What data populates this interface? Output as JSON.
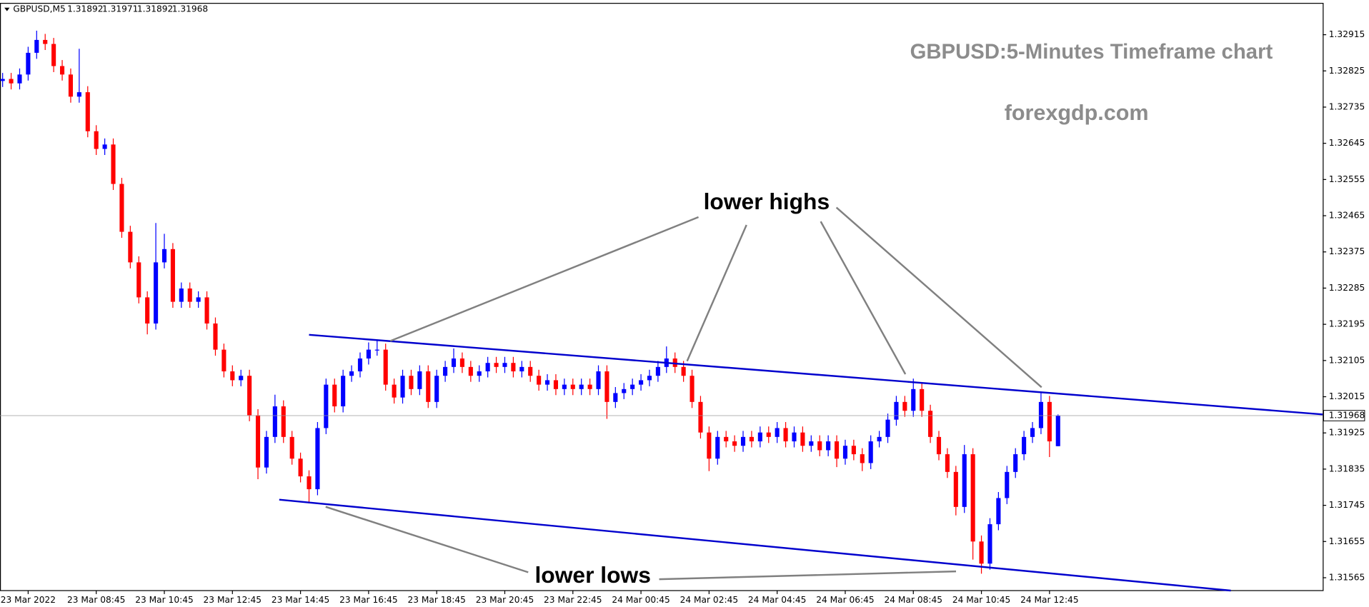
{
  "chart_data": {
    "type": "candlestick",
    "symbol": "GBPUSD,M5",
    "title": "GBPUSD:5-Minutes Timeframe chart",
    "watermark": "forexgdp.com",
    "annotations": [
      "lower highs",
      "lower lows"
    ],
    "up_color": "#0000ff",
    "down_color": "#ff0000",
    "trendline_color": "#0000cd",
    "xlim": [
      0,
      155.1
    ],
    "ylim": [
      1.31533,
      1.32993
    ],
    "yticks": [
      1.32915,
      1.32825,
      1.32735,
      1.32645,
      1.32555,
      1.32465,
      1.32375,
      1.32285,
      1.32195,
      1.32105,
      1.32015,
      1.31925,
      1.31835,
      1.31745,
      1.31655,
      1.31565
    ],
    "xticks": [
      {
        "value": 3,
        "label": "23 Mar 2022"
      },
      {
        "value": 11,
        "label": "23 Mar 08:45"
      },
      {
        "value": 19,
        "label": "23 Mar 10:45"
      },
      {
        "value": 27,
        "label": "23 Mar 12:45"
      },
      {
        "value": 35,
        "label": "23 Mar 14:45"
      },
      {
        "value": 43,
        "label": "23 Mar 16:45"
      },
      {
        "value": 51,
        "label": "23 Mar 18:45"
      },
      {
        "value": 59,
        "label": "23 Mar 20:45"
      },
      {
        "value": 67,
        "label": "23 Mar 22:45"
      },
      {
        "value": 75,
        "label": "24 Mar 00:45"
      },
      {
        "value": 83,
        "label": "24 Mar 02:45"
      },
      {
        "value": 91,
        "label": "24 Mar 04:45"
      },
      {
        "value": 99,
        "label": "24 Mar 06:45"
      },
      {
        "value": 107,
        "label": "24 Mar 08:45"
      },
      {
        "value": 115,
        "label": "24 Mar 10:45"
      },
      {
        "value": 123,
        "label": "24 Mar 12:45"
      }
    ],
    "trendlines": [
      {
        "x": [
          36,
          155.1
        ],
        "y": [
          1.32169,
          1.31971
        ]
      },
      {
        "x": [
          32.5,
          144.3
        ],
        "y": [
          1.31759,
          1.31533
        ]
      }
    ],
    "open": [
      1.328,
      1.32805,
      1.32794,
      1.32816,
      1.3287,
      1.32902,
      1.32892,
      1.32837,
      1.32816,
      1.32761,
      1.32772,
      1.32675,
      1.32631,
      1.32642,
      1.32544,
      1.32425,
      1.32349,
      1.32262,
      1.32197,
      1.32349,
      1.32382,
      1.32251,
      1.32284,
      1.32251,
      1.32262,
      1.32197,
      1.32132,
      1.32078,
      1.32056,
      1.32067,
      1.31969,
      1.31839,
      1.31915,
      1.31991,
      1.31915,
      1.31861,
      1.31817,
      1.31785,
      1.31937,
      1.32045,
      1.31991,
      1.32067,
      1.32078,
      1.3211,
      1.32132,
      1.32132,
      1.32045,
      1.32013,
      1.32067,
      1.32034,
      1.32078,
      1.32002,
      1.32067,
      1.32089,
      1.3211,
      1.32089,
      1.32067,
      1.32078,
      1.32099,
      1.32089,
      1.32099,
      1.32078,
      1.32089,
      1.32067,
      1.32045,
      1.32056,
      1.32034,
      1.32045,
      1.32034,
      1.32045,
      1.32034,
      1.32078,
      1.32002,
      1.32024,
      1.32034,
      1.32045,
      1.32056,
      1.32067,
      1.32089,
      1.3211,
      1.32089,
      1.32067,
      1.32002,
      1.31926,
      1.31861,
      1.31915,
      1.31904,
      1.31893,
      1.31915,
      1.31904,
      1.31926,
      1.31915,
      1.31937,
      1.31904,
      1.31926,
      1.31893,
      1.31904,
      1.31882,
      1.31904,
      1.31861,
      1.31893,
      1.31872,
      1.3185,
      1.31904,
      1.31915,
      1.31958,
      1.32002,
      1.3198,
      1.32034,
      1.3198,
      1.31915,
      1.31872,
      1.31828,
      1.31741,
      1.31872,
      1.31655,
      1.316,
      1.31698,
      1.31763,
      1.31828,
      1.31872,
      1.31915,
      1.31937,
      1.32002,
      1.31892
    ],
    "high": [
      1.3282,
      1.3282,
      1.32831,
      1.32885,
      1.32925,
      1.32917,
      1.32907,
      1.32852,
      1.32831,
      1.3288,
      1.32787,
      1.3269,
      1.32657,
      1.32657,
      1.32559,
      1.3244,
      1.32364,
      1.32277,
      1.32447,
      1.3242,
      1.32397,
      1.32299,
      1.32299,
      1.32277,
      1.32277,
      1.32212,
      1.32147,
      1.32093,
      1.32082,
      1.32082,
      1.31984,
      1.3193,
      1.3202,
      1.32006,
      1.3193,
      1.31876,
      1.31832,
      1.31952,
      1.3206,
      1.3206,
      1.32082,
      1.32093,
      1.32125,
      1.3215,
      1.32155,
      1.32147,
      1.3206,
      1.32082,
      1.32082,
      1.32093,
      1.32093,
      1.32082,
      1.32104,
      1.32135,
      1.32125,
      1.32104,
      1.32093,
      1.32114,
      1.32114,
      1.32114,
      1.32114,
      1.32104,
      1.32104,
      1.32082,
      1.32071,
      1.32071,
      1.3206,
      1.3206,
      1.3206,
      1.3206,
      1.32093,
      1.32093,
      1.32039,
      1.32049,
      1.3206,
      1.32071,
      1.32082,
      1.32104,
      1.3214,
      1.32125,
      1.32104,
      1.32082,
      1.32017,
      1.31941,
      1.3193,
      1.3193,
      1.31919,
      1.3193,
      1.3193,
      1.31941,
      1.31941,
      1.31952,
      1.31952,
      1.31941,
      1.31941,
      1.31919,
      1.31919,
      1.31919,
      1.31919,
      1.31908,
      1.31908,
      1.31887,
      1.31919,
      1.3193,
      1.31973,
      1.32017,
      1.32017,
      1.3206,
      1.32049,
      1.31995,
      1.3193,
      1.31887,
      1.31843,
      1.31895,
      1.31887,
      1.3167,
      1.31713,
      1.31778,
      1.31843,
      1.31887,
      1.3193,
      1.31952,
      1.32025,
      1.32017,
      1.31971
    ],
    "low": [
      1.32785,
      1.32779,
      1.32779,
      1.32801,
      1.32855,
      1.32877,
      1.32822,
      1.32801,
      1.32746,
      1.32746,
      1.3266,
      1.32616,
      1.32616,
      1.32529,
      1.3241,
      1.32334,
      1.32247,
      1.3217,
      1.32182,
      1.32334,
      1.32236,
      1.32236,
      1.32236,
      1.32236,
      1.32182,
      1.32117,
      1.32063,
      1.32041,
      1.32041,
      1.31954,
      1.3181,
      1.31824,
      1.319,
      1.319,
      1.31846,
      1.31802,
      1.3175,
      1.3177,
      1.31922,
      1.31976,
      1.31976,
      1.32052,
      1.32063,
      1.32095,
      1.32117,
      1.3203,
      1.31998,
      1.31998,
      1.32019,
      1.32019,
      1.31987,
      1.31987,
      1.32052,
      1.32074,
      1.32074,
      1.32052,
      1.32052,
      1.32063,
      1.32074,
      1.32074,
      1.32063,
      1.32063,
      1.32052,
      1.3203,
      1.3203,
      1.32019,
      1.32019,
      1.32019,
      1.32019,
      1.32019,
      1.32019,
      1.3196,
      1.31987,
      1.32009,
      1.32019,
      1.3203,
      1.32041,
      1.32052,
      1.32074,
      1.32074,
      1.32052,
      1.31987,
      1.31911,
      1.3183,
      1.31846,
      1.31889,
      1.31878,
      1.31878,
      1.31889,
      1.31889,
      1.319,
      1.319,
      1.31889,
      1.31889,
      1.31878,
      1.31878,
      1.31867,
      1.31867,
      1.3184,
      1.31846,
      1.31857,
      1.3183,
      1.31835,
      1.31889,
      1.319,
      1.31943,
      1.31965,
      1.31965,
      1.31965,
      1.319,
      1.31857,
      1.31813,
      1.3172,
      1.31726,
      1.3161,
      1.31575,
      1.31585,
      1.31683,
      1.31748,
      1.31813,
      1.31857,
      1.319,
      1.31922,
      1.31865,
      1.31892
    ],
    "close": [
      1.32805,
      1.32794,
      1.32816,
      1.3287,
      1.32902,
      1.32892,
      1.32837,
      1.32816,
      1.32761,
      1.32772,
      1.32675,
      1.32631,
      1.32642,
      1.32544,
      1.32425,
      1.32349,
      1.32262,
      1.32197,
      1.32349,
      1.32382,
      1.32251,
      1.32284,
      1.32251,
      1.32262,
      1.32197,
      1.32132,
      1.32078,
      1.32056,
      1.32067,
      1.31969,
      1.31839,
      1.31915,
      1.31991,
      1.31915,
      1.31861,
      1.31817,
      1.31785,
      1.31937,
      1.32045,
      1.31991,
      1.32067,
      1.32078,
      1.3211,
      1.32132,
      1.32132,
      1.32045,
      1.32013,
      1.32067,
      1.32034,
      1.32078,
      1.32002,
      1.32067,
      1.32089,
      1.3211,
      1.32089,
      1.32067,
      1.32078,
      1.32099,
      1.32089,
      1.32099,
      1.32078,
      1.32089,
      1.32067,
      1.32045,
      1.32056,
      1.32034,
      1.32045,
      1.32034,
      1.32045,
      1.32034,
      1.32078,
      1.32002,
      1.32024,
      1.32034,
      1.32045,
      1.32056,
      1.32067,
      1.32089,
      1.3211,
      1.32089,
      1.32067,
      1.32002,
      1.31926,
      1.31861,
      1.31915,
      1.31904,
      1.31893,
      1.31915,
      1.31904,
      1.31926,
      1.31915,
      1.31937,
      1.31904,
      1.31926,
      1.31893,
      1.31904,
      1.31882,
      1.31904,
      1.31861,
      1.31893,
      1.31872,
      1.3185,
      1.31904,
      1.31915,
      1.31958,
      1.32002,
      1.3198,
      1.32034,
      1.3198,
      1.31915,
      1.31872,
      1.31828,
      1.31741,
      1.31872,
      1.31655,
      1.316,
      1.31698,
      1.31763,
      1.31828,
      1.31872,
      1.31915,
      1.31937,
      1.32002,
      1.31904,
      1.31968
    ]
  }
}
